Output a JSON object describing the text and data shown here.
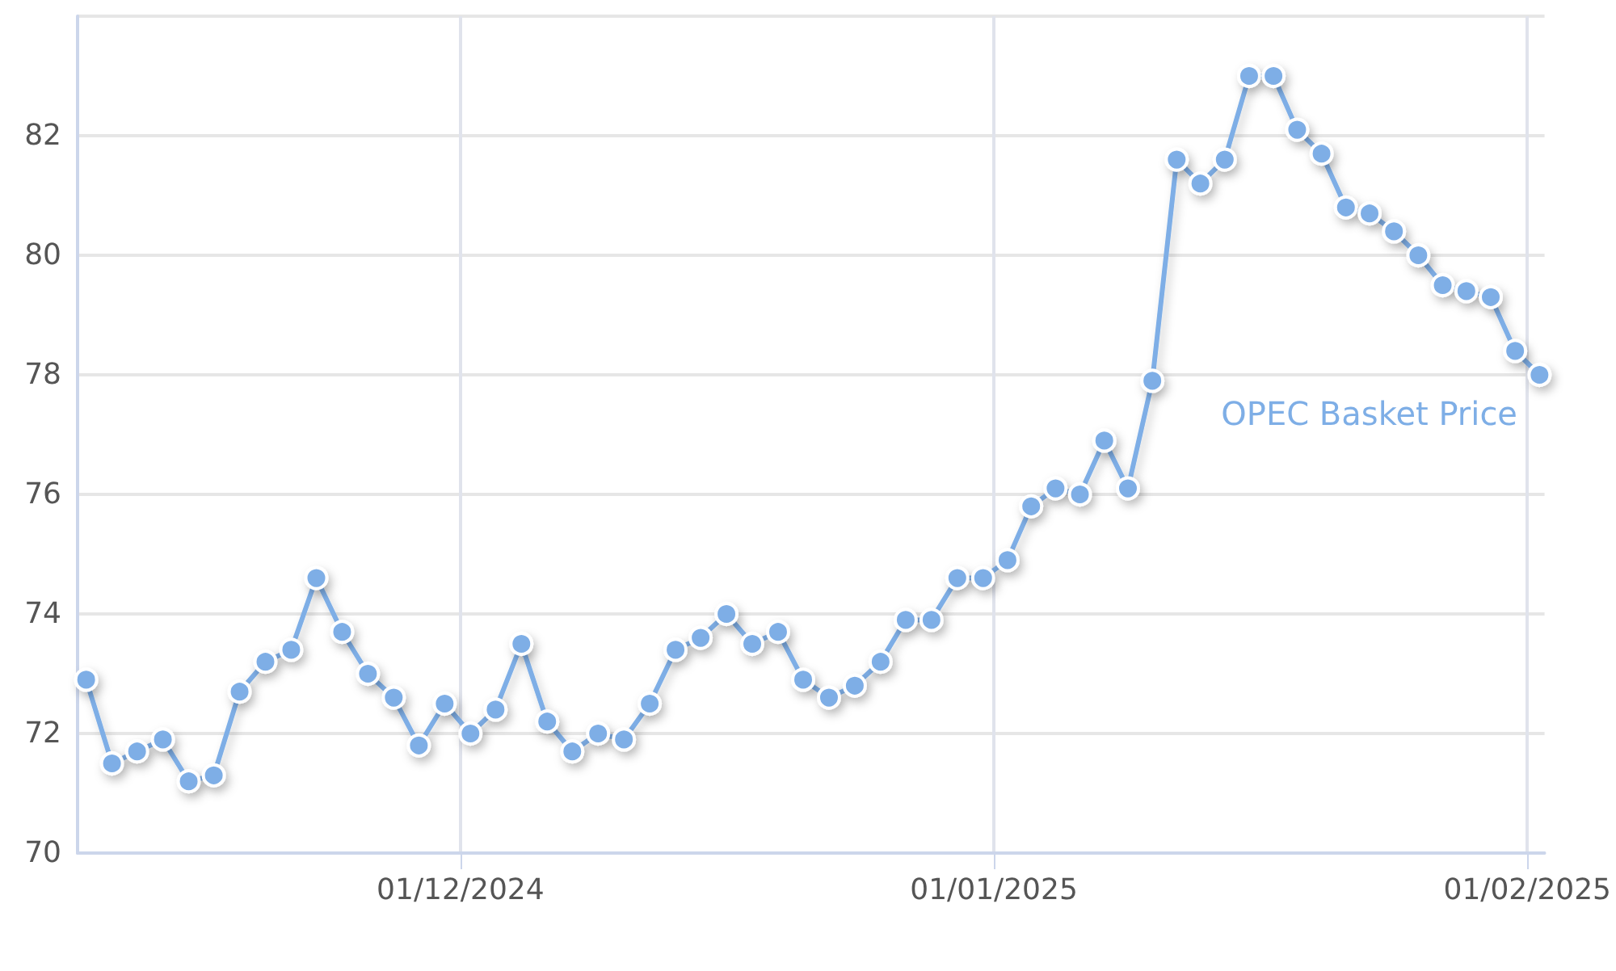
{
  "chart_data": {
    "type": "line",
    "x": [
      "2024-11-09T06:00",
      "2024-11-10T18:00",
      "2024-11-12T05:00",
      "2024-11-13T17:00",
      "2024-11-15T05:00",
      "2024-11-16T16:00",
      "2024-11-18T04:00",
      "2024-11-19T16:00",
      "2024-11-21T04:00",
      "2024-11-22T15:00",
      "2024-11-24T03:00",
      "2024-11-25T15:00",
      "2024-11-27T03:00",
      "2024-11-28T14:00",
      "2024-11-30T02:00",
      "2024-12-01T14:00",
      "2024-12-03T01:00",
      "2024-12-04T13:00",
      "2024-12-06T01:00",
      "2024-12-07T12:00",
      "2024-12-09T00:00",
      "2024-12-10T12:00",
      "2024-12-12T00:00",
      "2024-12-13T12:00",
      "2024-12-14T23:00",
      "2024-12-16T11:00",
      "2024-12-17T23:00",
      "2024-12-19T11:00",
      "2024-12-20T22:00",
      "2024-12-22T10:00",
      "2024-12-23T22:00",
      "2024-12-25T10:00",
      "2024-12-26T21:00",
      "2024-12-28T09:00",
      "2024-12-29T21:00",
      "2024-12-31T09:00",
      "2025-01-01T19:00",
      "2025-01-03T04:00",
      "2025-01-04T14:00",
      "2025-01-06T00:00",
      "2025-01-07T10:00",
      "2025-01-08T19:00",
      "2025-01-10T05:00",
      "2025-01-11T15:00",
      "2025-01-13T00:00",
      "2025-01-14T10:00",
      "2025-01-15T20:00",
      "2025-01-17T06:00",
      "2025-01-18T15:00",
      "2025-01-20T01:00",
      "2025-01-21T11:00",
      "2025-01-22T20:00",
      "2025-01-24T06:00",
      "2025-01-25T16:00",
      "2025-01-27T02:00",
      "2025-01-28T11:00",
      "2025-01-29T21:00",
      "2025-01-31T07:00",
      "2025-02-01T17:00"
    ],
    "series": [
      {
        "name": "OPEC Basket Price",
        "color": "#7eaee6",
        "values": [
          72.9,
          71.5,
          71.7,
          71.9,
          71.2,
          71.3,
          72.7,
          73.2,
          73.4,
          74.6,
          73.7,
          73.0,
          72.6,
          71.8,
          72.5,
          72.0,
          72.4,
          73.5,
          72.2,
          71.7,
          72.0,
          71.9,
          72.5,
          73.4,
          73.6,
          74.0,
          73.5,
          73.7,
          72.9,
          72.6,
          72.8,
          73.2,
          73.9,
          73.9,
          74.6,
          74.6,
          74.9,
          75.8,
          76.1,
          76.0,
          76.9,
          76.1,
          77.9,
          81.6,
          81.2,
          81.6,
          83.0,
          83.0,
          82.1,
          81.7,
          80.8,
          80.7,
          80.4,
          80.0,
          79.5,
          79.4,
          79.3,
          78.4,
          78.0
        ]
      }
    ],
    "xlim": [
      "2024-11-08T18:00",
      "2025-02-02T00:00"
    ],
    "xticks": [
      {
        "value": "2024-12-01",
        "label": "01/12/2024"
      },
      {
        "value": "2025-01-01",
        "label": "01/01/2025"
      },
      {
        "value": "2025-02-01",
        "label": "01/02/2025"
      }
    ],
    "ylim": [
      70,
      84
    ],
    "yticks": [
      70,
      72,
      74,
      76,
      78,
      80,
      82,
      {
        "value": 84,
        "label": null
      }
    ],
    "grid": true,
    "legend": false,
    "marker": "circle",
    "line_style": "solid"
  }
}
